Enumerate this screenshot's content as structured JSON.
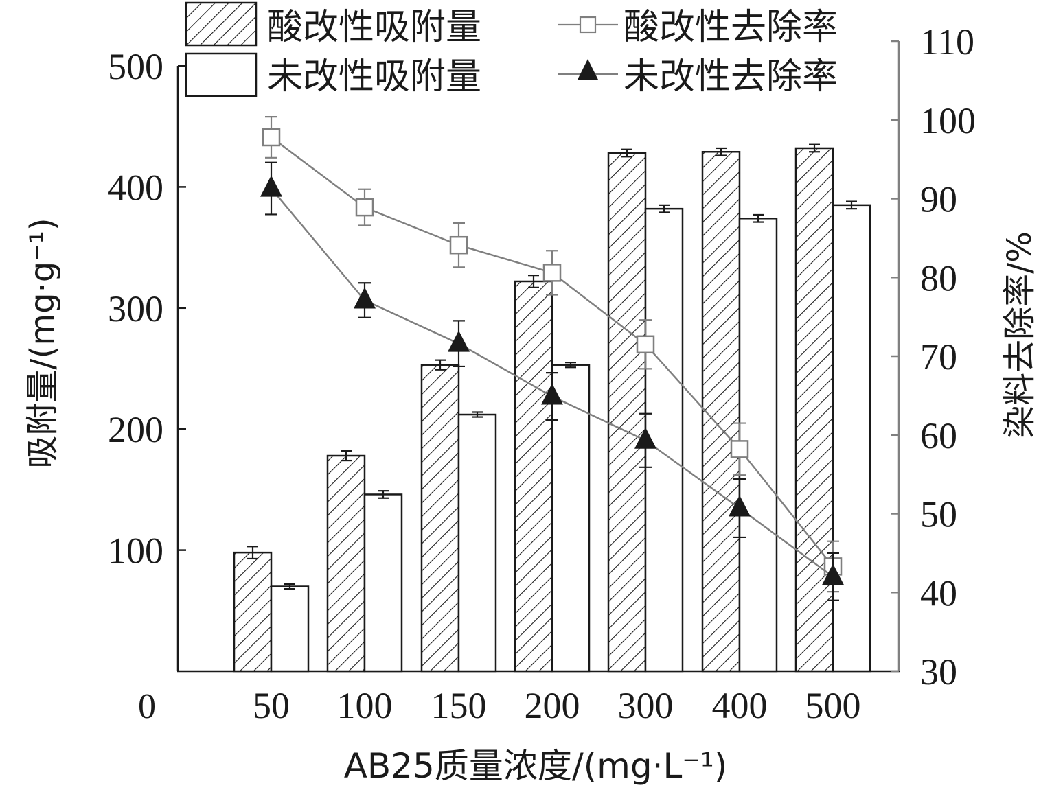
{
  "chart_data": {
    "type": "bar",
    "categories": [
      "50",
      "100",
      "150",
      "200",
      "300",
      "400",
      "500"
    ],
    "xlabel": "AB25质量浓度/(mg·L⁻¹)",
    "x_origin_label": "0",
    "ylabel_left": "吸附量/(mg·g⁻¹)",
    "ylabel_right": "染料去除率/%",
    "y_left": {
      "min": 0,
      "max": 500,
      "ticks": [
        100,
        200,
        300,
        400,
        500
      ]
    },
    "y_right": {
      "min": 30,
      "max": 110,
      "ticks": [
        30,
        40,
        50,
        60,
        70,
        80,
        90,
        100,
        110
      ]
    },
    "series": [
      {
        "name": "酸改性吸附量",
        "kind": "bar",
        "axis": "left",
        "fill": "hatch",
        "values": [
          98,
          178,
          253,
          322,
          428,
          429,
          432
        ],
        "errors": [
          5,
          4,
          4,
          5,
          3,
          3,
          3
        ]
      },
      {
        "name": "未改性吸附量",
        "kind": "bar",
        "axis": "left",
        "fill": "white",
        "values": [
          70,
          146,
          212,
          253,
          382,
          374,
          385
        ],
        "errors": [
          2,
          3,
          2,
          2,
          3,
          3,
          3
        ]
      },
      {
        "name": "酸改性去除率",
        "kind": "line",
        "axis": "right",
        "marker": "open-square",
        "color": "#7f7f7f",
        "values": [
          97.8,
          88.9,
          84.1,
          80.6,
          71.5,
          58.2,
          43.3
        ],
        "errors": [
          2.6,
          2.3,
          2.8,
          2.8,
          3.1,
          3.3,
          3.2
        ]
      },
      {
        "name": "未改性去除率",
        "kind": "line",
        "axis": "right",
        "marker": "filled-triangle",
        "color": "#1a1a1a",
        "values": [
          91.3,
          77.1,
          71.6,
          64.9,
          59.3,
          50.7,
          42.0
        ],
        "errors": [
          3.3,
          2.2,
          2.9,
          3.0,
          3.4,
          3.7,
          3.0
        ]
      }
    ],
    "legend": "top",
    "grid": false
  },
  "colors": {
    "axis": "#1a1a1a",
    "right_axis": "#808080",
    "line_gray": "#7f7f7f"
  }
}
